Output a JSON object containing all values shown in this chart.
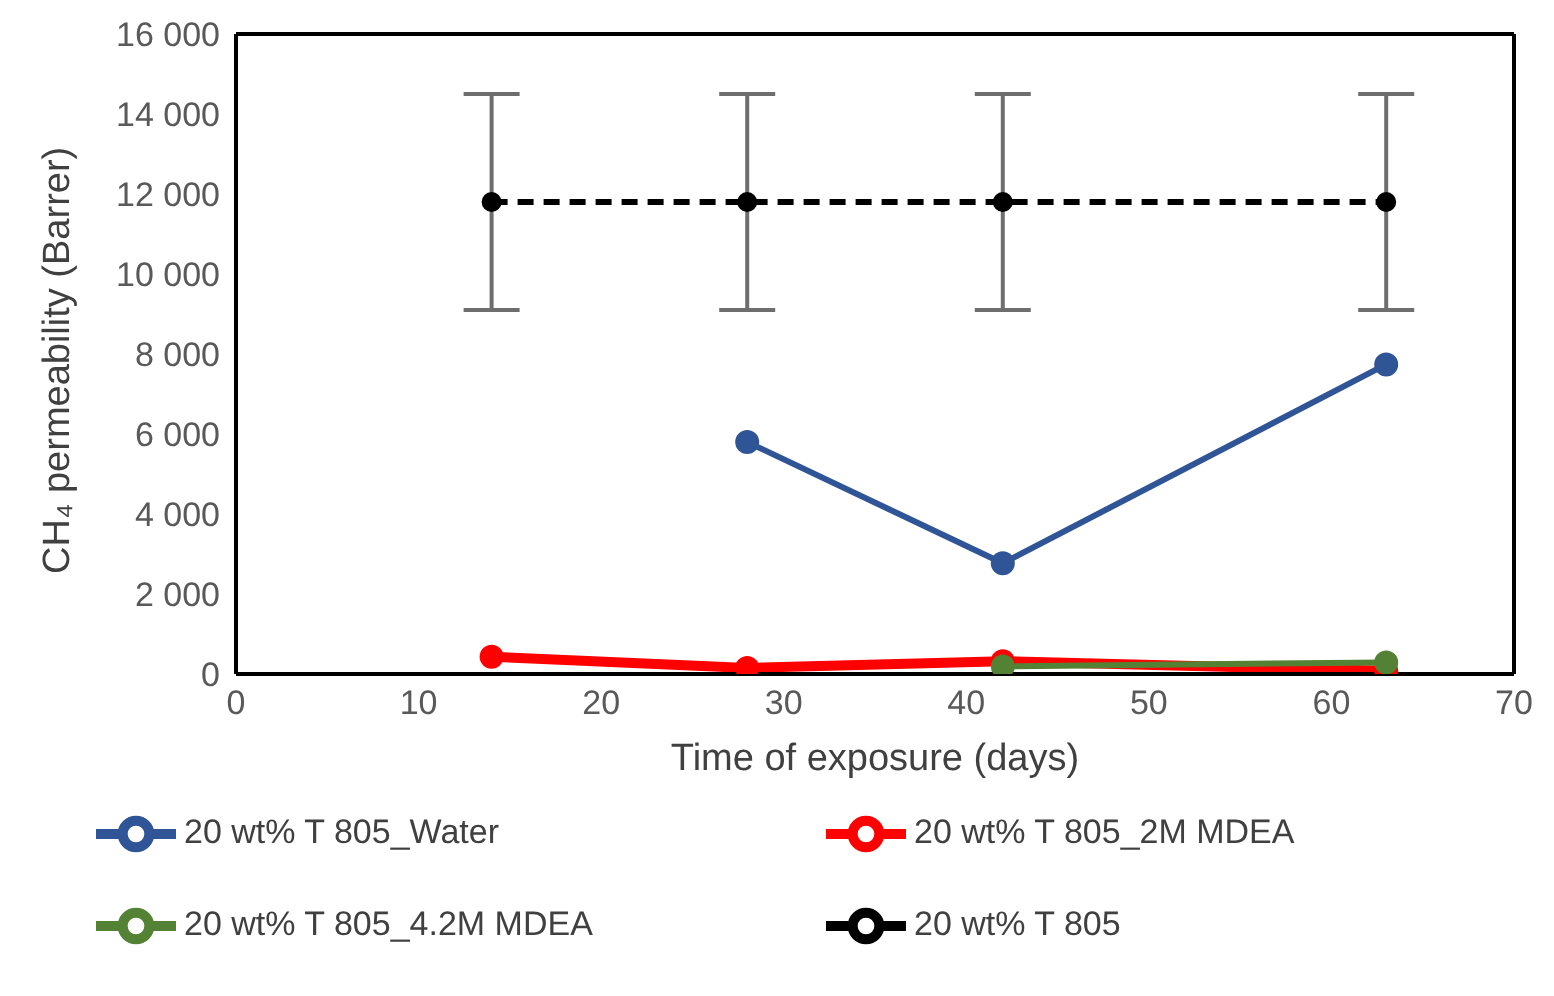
{
  "chart_data": {
    "type": "line",
    "xlabel": "Time of exposure (days)",
    "ylabel": "CH₄ permeability (Barrer)",
    "xlim": [
      0,
      70
    ],
    "xticks": [
      0,
      10,
      20,
      30,
      40,
      50,
      60,
      70
    ],
    "ylim": [
      0,
      16000
    ],
    "yticks": [
      {
        "value": 0,
        "label": "0"
      },
      {
        "value": 2000,
        "label": "2 000"
      },
      {
        "value": 4000,
        "label": "4 000"
      },
      {
        "value": 6000,
        "label": "6 000"
      },
      {
        "value": 8000,
        "label": "8 000"
      },
      {
        "value": 10000,
        "label": "10 000"
      },
      {
        "value": 12000,
        "label": "12 000"
      },
      {
        "value": 14000,
        "label": "14 000"
      },
      {
        "value": 16000,
        "label": "16 000"
      }
    ],
    "grid": false,
    "legend": "bottom",
    "marker": "circle",
    "series": [
      {
        "name": "20 wt% T 805_Water",
        "color": "#2f5597",
        "x": [
          28,
          42,
          63
        ],
        "values": [
          5800,
          2770,
          7740
        ]
      },
      {
        "name": "20 wt% T 805_2M MDEA",
        "color": "#ff0000",
        "x": [
          14,
          28,
          42,
          63
        ],
        "values": [
          430,
          150,
          320,
          80
        ]
      },
      {
        "name": "20 wt% T 805_4.2M MDEA",
        "color": "#548235",
        "x": [
          42,
          63
        ],
        "values": [
          190,
          290
        ]
      },
      {
        "name": "20 wt% T 805",
        "color": "#000000",
        "line_style": "dashed",
        "x": [
          14,
          28,
          42,
          63
        ],
        "values": [
          11800,
          11800,
          11800,
          11800
        ],
        "errors": [
          2700,
          2700,
          2700,
          2700
        ]
      }
    ]
  }
}
